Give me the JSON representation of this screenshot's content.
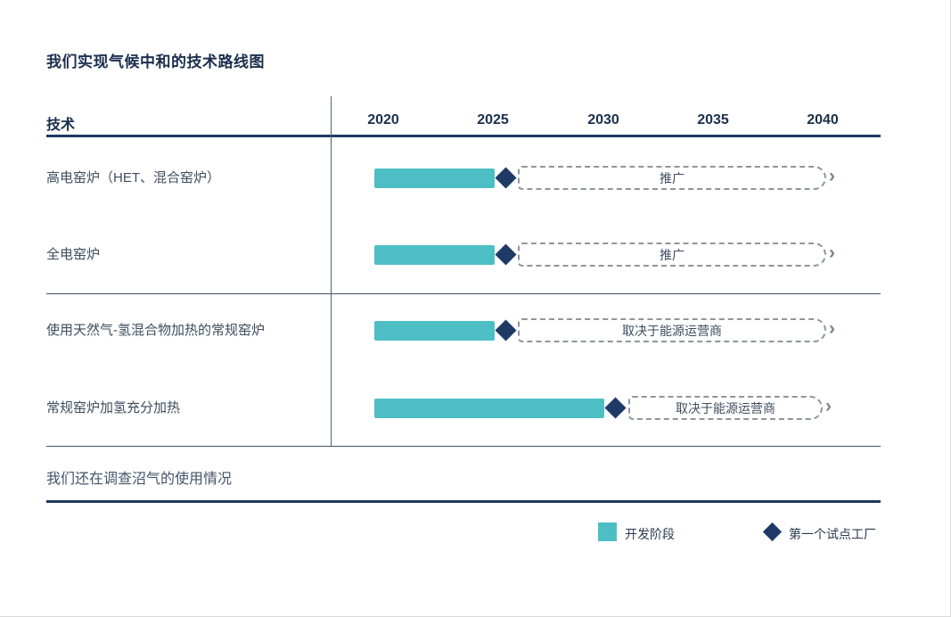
{
  "page": {
    "title": "我们实现气候中和的技术路线图"
  },
  "header": {
    "tech_column": "技术",
    "years": [
      "2020",
      "2025",
      "2030",
      "2035",
      "2040"
    ]
  },
  "rows": [
    {
      "label": "高电窑炉（HET、混合窑炉）",
      "phase_label": "推广"
    },
    {
      "label": "全电窑炉",
      "phase_label": "推广"
    },
    {
      "label": "使用天然气-氢混合物加热的常规窑炉",
      "phase_label": "取决于能源运营商"
    },
    {
      "label": "常规窑炉加氢充分加热",
      "phase_label": "取决于能源运营商"
    }
  ],
  "note": "我们还在调查沼气的使用情况",
  "legend": {
    "development_phase": "开发阶段",
    "first_pilot_plant": "第一个试点工厂"
  },
  "icons": {
    "chevron_right": "›"
  },
  "colors": {
    "navy_line": "#1e3a5f",
    "teal_bar": "#4dbfc4",
    "diamond_navy": "#1f3a66",
    "dashed_gray": "#8f959c",
    "text_dark": "#3f4d5e"
  },
  "chart_data": {
    "type": "bar",
    "subtype": "gantt-roadmap",
    "title": "我们实现气候中和的技术路线图",
    "x_axis": {
      "ticks": [
        2020,
        2025,
        2030,
        2035,
        2040
      ],
      "range": [
        2020,
        2040
      ]
    },
    "categories": [
      "高电窑炉（HET、混合窑炉）",
      "全电窑炉",
      "使用天然气-氢混合物加热的常规窑炉",
      "常规窑炉加氢充分加热"
    ],
    "series": [
      {
        "name": "开发阶段",
        "marker": "solid-bar",
        "color": "#4dbfc4",
        "ranges": [
          [
            2020,
            2025
          ],
          [
            2020,
            2025
          ],
          [
            2020,
            2025
          ],
          [
            2020,
            2030
          ]
        ]
      },
      {
        "name": "第一个试点工厂",
        "marker": "diamond-milestone",
        "color": "#1f3a66",
        "x": [
          2025,
          2025,
          2025,
          2030
        ]
      },
      {
        "name": "后续阶段（虚线箭头）",
        "marker": "dashed-arrow",
        "ranges": [
          [
            2025,
            2040
          ],
          [
            2025,
            2040
          ],
          [
            2025,
            2040
          ],
          [
            2030,
            2040
          ]
        ],
        "labels": [
          "推广",
          "推广",
          "取决于能源运营商",
          "取决于能源运营商"
        ]
      }
    ],
    "annotations": [
      "我们还在调查沼气的使用情况"
    ],
    "legend_position": "bottom-right",
    "grid": false
  }
}
